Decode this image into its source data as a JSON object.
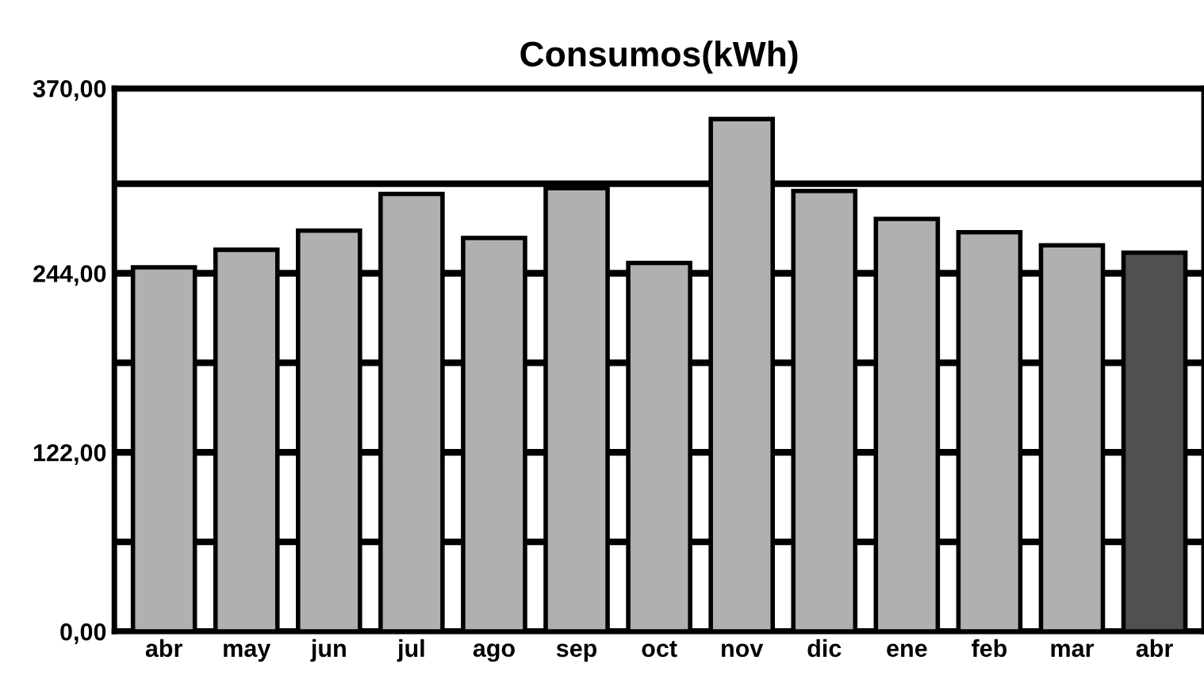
{
  "chart_data": {
    "type": "bar",
    "title": "Consumos(kWh)",
    "categories": [
      "abr",
      "may",
      "jun",
      "jul",
      "ago",
      "sep",
      "oct",
      "nov",
      "dic",
      "ene",
      "feb",
      "mar",
      "abr"
    ],
    "values": [
      248,
      260,
      273,
      298,
      268,
      302,
      251,
      349,
      300,
      281,
      272,
      263,
      258
    ],
    "colors": [
      "#b0b0b0",
      "#b0b0b0",
      "#b0b0b0",
      "#b0b0b0",
      "#b0b0b0",
      "#b0b0b0",
      "#b0b0b0",
      "#b0b0b0",
      "#b0b0b0",
      "#b0b0b0",
      "#b0b0b0",
      "#b0b0b0",
      "#505050"
    ],
    "ylim": [
      0,
      370
    ],
    "yticks": [
      {
        "value": 0,
        "label": "0,00"
      },
      {
        "value": 61,
        "label": null
      },
      {
        "value": 122,
        "label": "122,00"
      },
      {
        "value": 183,
        "label": null
      },
      {
        "value": 244,
        "label": "244,00"
      },
      {
        "value": 305,
        "label": null
      },
      {
        "value": 370,
        "label": "370,00"
      }
    ],
    "grid": "y"
  }
}
